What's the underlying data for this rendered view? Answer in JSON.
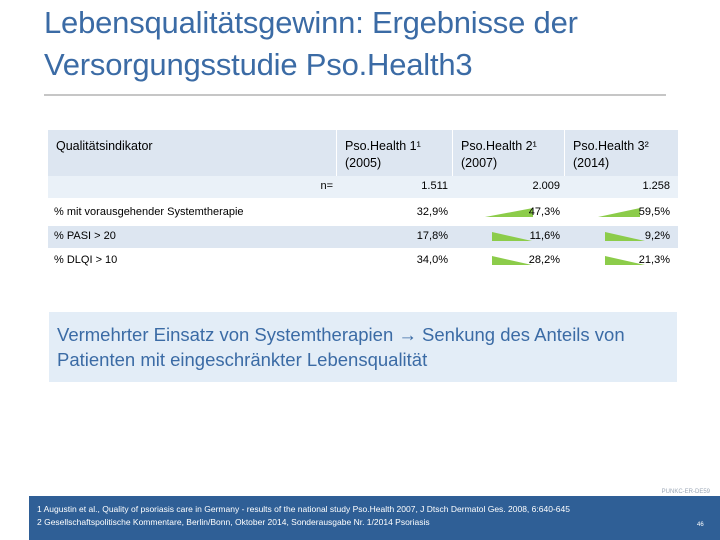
{
  "slide": {
    "title": "Lebensqualitätsgewinn: Ergebnisse der Versorgungsstudie Pso.Health3"
  },
  "table": {
    "header": {
      "indicator": "Qualitätsindikator",
      "col1_line1": "Pso.Health 1¹",
      "col1_line2": "(2005)",
      "col2_line1": "Pso.Health 2¹",
      "col2_line2": "(2007)",
      "col3_line1": "Pso.Health 3²",
      "col3_line2": "(2014)"
    },
    "n_row": {
      "label": "n=",
      "v1": "1.511",
      "v2": "2.009",
      "v3": "1.258"
    },
    "rows": [
      {
        "label": "% mit vorausgehender Systemtherapie",
        "v1": "32,9%",
        "v2": "47,3%",
        "v3": "59,5%",
        "trend": "up"
      },
      {
        "label": "% PASI > 20",
        "v1": "17,8%",
        "v2": "11,6%",
        "v3": "9,2%",
        "trend": "down"
      },
      {
        "label": "% DLQI > 10",
        "v1": "34,0%",
        "v2": "28,2%",
        "v3": "21,3%",
        "trend": "down"
      }
    ],
    "trend_color": "#8ccc4a"
  },
  "summary": {
    "text": "Vermehrter Einsatz von Systemtherapien → Senkung des Anteils von Patienten mit eingeschränkter Lebensqualität"
  },
  "stamp": "PUNKC-ER-DE59",
  "footer": {
    "note1": "1 Augustin et al., Quality of psoriasis care in Germany - results of the national study Pso.Health 2007, J Dtsch Dermatol Ges. 2008, 6:640-645",
    "note2": "2 Gesellschaftspolitische Kommentare, Berlin/Bonn, Oktober 2014, Sonderausgabe Nr. 1/2014 Psoriasis",
    "page": "46"
  }
}
